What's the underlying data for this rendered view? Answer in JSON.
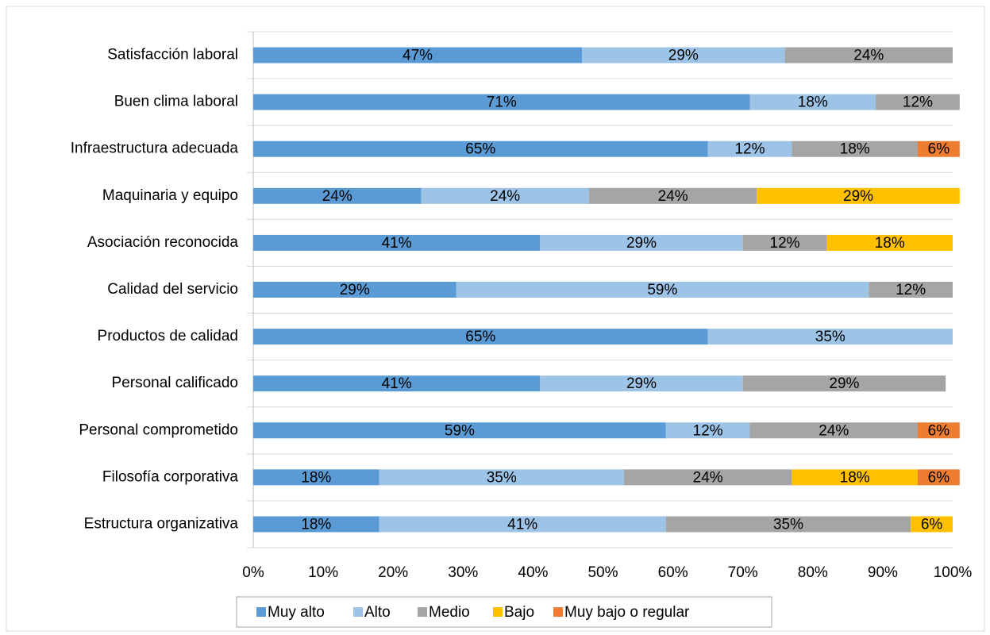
{
  "chart_data": {
    "type": "stacked_barh",
    "categories": [
      "Satisfacción laboral",
      "Buen clima laboral",
      "Infraestructura  adecuada",
      "Maquinaria y equipo",
      "Asociación reconocida",
      "Calidad del servicio",
      "Productos de calidad",
      "Personal calificado",
      "Personal comprometido",
      "Filosofía corporativa",
      "Estructura organizativa"
    ],
    "series": [
      {
        "name": "Muy alto",
        "color": "#5b9bd5",
        "values": [
          47,
          71,
          65,
          24,
          41,
          29,
          65,
          41,
          59,
          18,
          18
        ],
        "value_labels": [
          "47%",
          "71%",
          "65%",
          "24%",
          "41%",
          "29%",
          "65%",
          "41%",
          "59%",
          "18%",
          "18%"
        ]
      },
      {
        "name": "Alto",
        "color": "#9dc3e6",
        "values": [
          29,
          18,
          12,
          24,
          29,
          59,
          35,
          29,
          12,
          35,
          41
        ],
        "value_labels": [
          "29%",
          "18%",
          "12%",
          "24%",
          "29%",
          "59%",
          "35%",
          "29%",
          "12%",
          "35%",
          "41%"
        ]
      },
      {
        "name": "Medio",
        "color": "#a5a5a5",
        "values": [
          24,
          12,
          18,
          24,
          12,
          12,
          null,
          29,
          24,
          24,
          35
        ],
        "value_labels": [
          "24%",
          "12%",
          "18%",
          "24%",
          "12%",
          "12%",
          null,
          "29%",
          "24%",
          "24%",
          "35%"
        ]
      },
      {
        "name": "Bajo",
        "color": "#ffc000",
        "values": [
          null,
          null,
          null,
          29,
          18,
          null,
          null,
          null,
          null,
          18,
          6
        ],
        "value_labels": [
          null,
          null,
          null,
          "29%",
          "18%",
          null,
          null,
          null,
          null,
          "18%",
          "6%"
        ]
      },
      {
        "name": "Muy bajo o regular",
        "color": "#ed7d31",
        "values": [
          null,
          null,
          6,
          null,
          null,
          null,
          null,
          null,
          6,
          6,
          null
        ],
        "value_labels": [
          null,
          null,
          "6%",
          null,
          null,
          null,
          null,
          null,
          "6%",
          "6%",
          null
        ]
      }
    ],
    "xlim": [
      0,
      100
    ],
    "xticks": [
      {
        "value": 0,
        "label": "0%"
      },
      {
        "value": 10,
        "label": "10%"
      },
      {
        "value": 20,
        "label": "20%"
      },
      {
        "value": 30,
        "label": "30%"
      },
      {
        "value": 40,
        "label": "40%"
      },
      {
        "value": 50,
        "label": "50%"
      },
      {
        "value": 60,
        "label": "60%"
      },
      {
        "value": 70,
        "label": "70%"
      },
      {
        "value": 80,
        "label": "80%"
      },
      {
        "value": 90,
        "label": "90%"
      },
      {
        "value": 100,
        "label": "100%"
      }
    ],
    "legend": "bottom"
  }
}
